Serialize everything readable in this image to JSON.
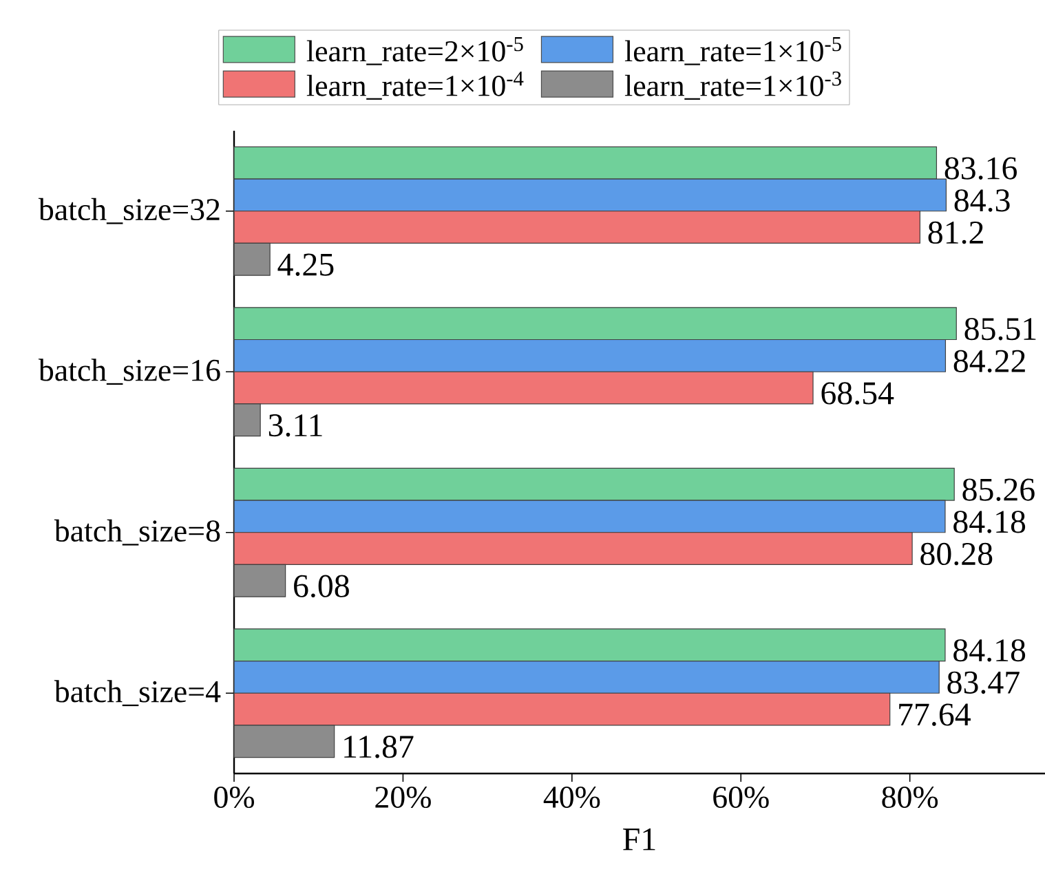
{
  "chart_data": {
    "type": "bar",
    "orientation": "horizontal",
    "xlabel": "F1",
    "categories": [
      "batch_size=32",
      "batch_size=16",
      "batch_size=8",
      "batch_size=4"
    ],
    "series": [
      {
        "name": "learn_rate=2×10$^{-5}$",
        "color": "#70d09a",
        "values": [
          83.16,
          85.51,
          85.26,
          84.18
        ]
      },
      {
        "name": "learn_rate=1×10$^{-5}$",
        "color": "#5b9be8",
        "values": [
          84.3,
          84.22,
          84.18,
          83.47
        ]
      },
      {
        "name": "learn_rate=1×10$^{-4}$",
        "color": "#f07474",
        "values": [
          81.2,
          68.54,
          80.28,
          77.64
        ]
      },
      {
        "name": "learn_rate=1×10$^{-3}$",
        "color": "#8c8c8c",
        "values": [
          4.25,
          3.11,
          6.08,
          11.87
        ]
      }
    ],
    "xlim": [
      0,
      96
    ],
    "xticks": [
      {
        "value": 0,
        "label": "0%"
      },
      {
        "value": 20,
        "label": "20%"
      },
      {
        "value": 40,
        "label": "40%"
      },
      {
        "value": 60,
        "label": "60%"
      },
      {
        "value": 80,
        "label": "80%"
      }
    ],
    "data_labels": true,
    "legend": "top"
  }
}
